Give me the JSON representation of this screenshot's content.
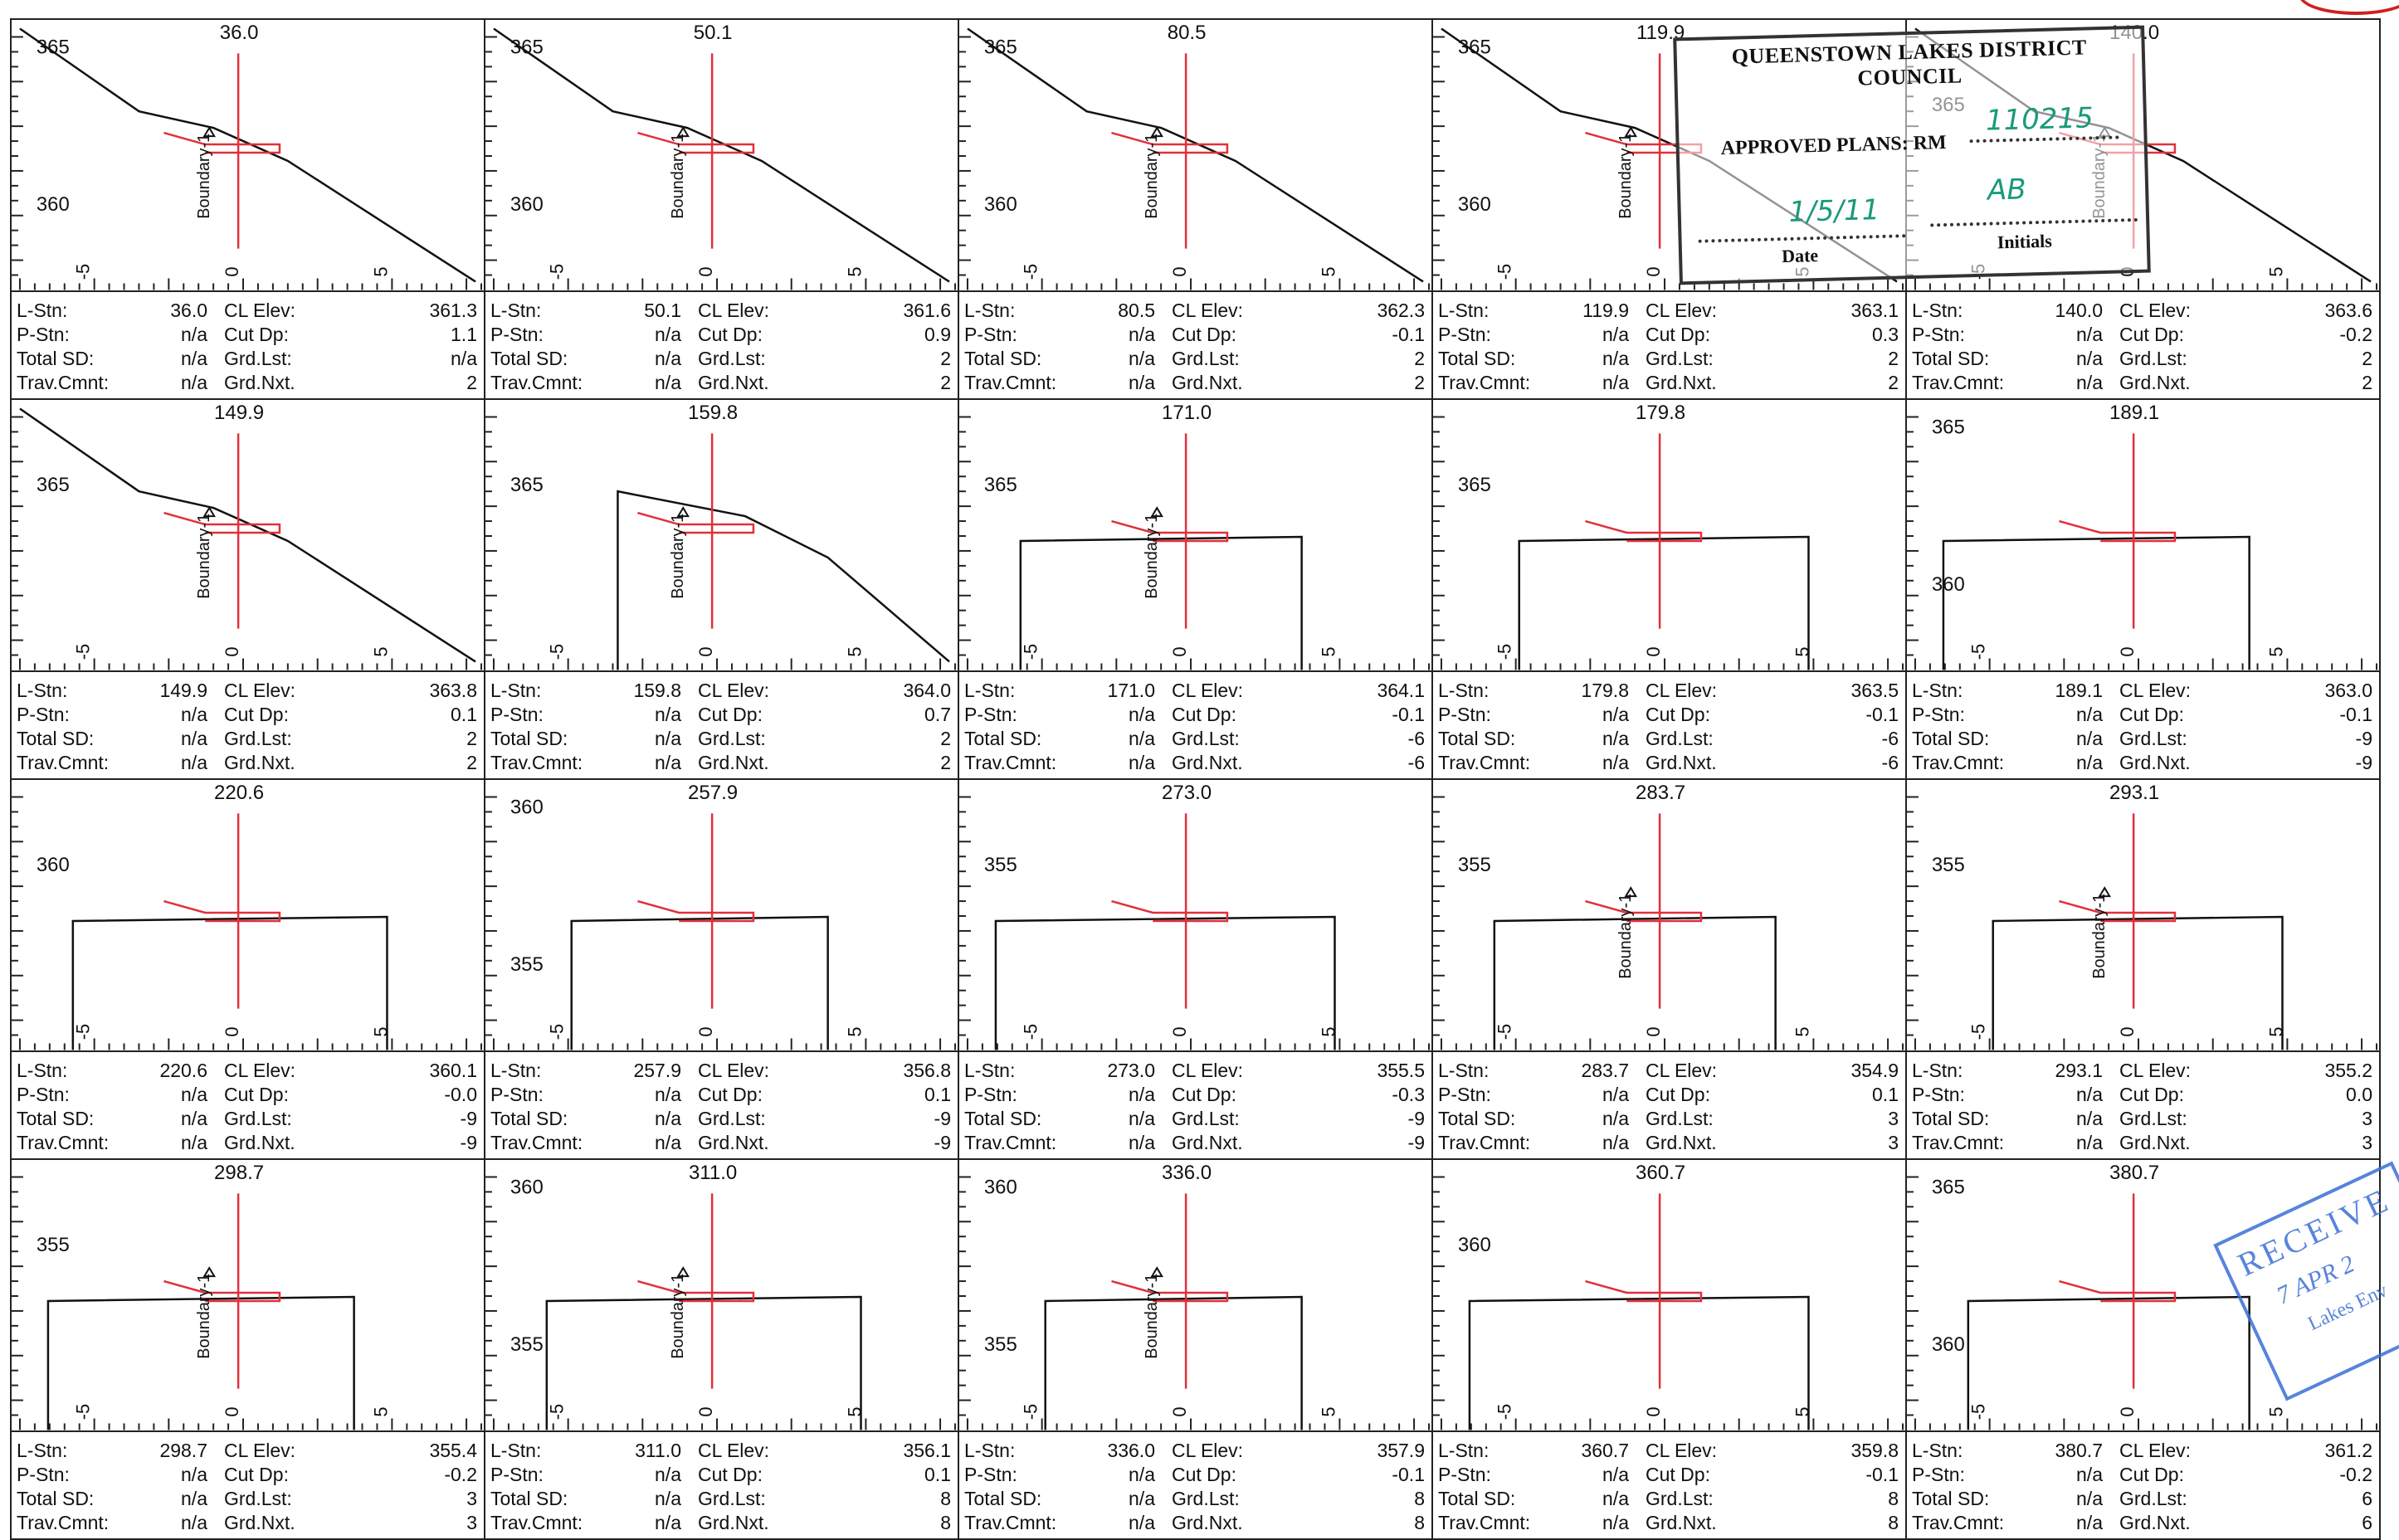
{
  "tick_labels": {
    "neg": "-5",
    "zero": "0",
    "pos": "5"
  },
  "field_labels": {
    "l_stn": "L-Stn:",
    "p_stn": "P-Stn:",
    "total_sd": "Total SD:",
    "trav_cmnt": "Trav.Cmnt:",
    "cl_elev": "CL Elev:",
    "cut_dp": "Cut Dp:",
    "grd_lst": "Grd.Lst:",
    "grd_nxt": "Grd.Nxt."
  },
  "boundary_label": "Boundary-1",
  "colors": {
    "ground": "#111111",
    "design": "#e0303a",
    "centerline": "#e0303a",
    "axis": "#222222"
  },
  "sections": [
    {
      "station": "36.0",
      "l_stn": "36.0",
      "p_stn": "n/a",
      "total_sd": "n/a",
      "trav_cmnt": "n/a",
      "cl_elev": "361.3",
      "cut_dp": "1.1",
      "grd_lst": "n/a",
      "grd_nxt": "2",
      "elev_labels": [
        "365",
        "360"
      ],
      "boundary": true
    },
    {
      "station": "50.1",
      "l_stn": "50.1",
      "p_stn": "n/a",
      "total_sd": "n/a",
      "trav_cmnt": "n/a",
      "cl_elev": "361.6",
      "cut_dp": "0.9",
      "grd_lst": "2",
      "grd_nxt": "2",
      "elev_labels": [
        "365",
        "360"
      ],
      "boundary": true
    },
    {
      "station": "80.5",
      "l_stn": "80.5",
      "p_stn": "n/a",
      "total_sd": "n/a",
      "trav_cmnt": "n/a",
      "cl_elev": "362.3",
      "cut_dp": "-0.1",
      "grd_lst": "2",
      "grd_nxt": "2",
      "elev_labels": [
        "365",
        "360"
      ],
      "boundary": true
    },
    {
      "station": "119.9",
      "l_stn": "119.9",
      "p_stn": "n/a",
      "total_sd": "n/a",
      "trav_cmnt": "n/a",
      "cl_elev": "363.1",
      "cut_dp": "0.3",
      "grd_lst": "2",
      "grd_nxt": "2",
      "elev_labels": [
        "365",
        "360"
      ],
      "boundary": true
    },
    {
      "station": "140.0",
      "l_stn": "140.0",
      "p_stn": "n/a",
      "total_sd": "n/a",
      "trav_cmnt": "n/a",
      "cl_elev": "363.6",
      "cut_dp": "-0.2",
      "grd_lst": "2",
      "grd_nxt": "2",
      "elev_labels": [
        "365"
      ],
      "boundary": true
    },
    {
      "station": "149.9",
      "l_stn": "149.9",
      "p_stn": "n/a",
      "total_sd": "n/a",
      "trav_cmnt": "n/a",
      "cl_elev": "363.8",
      "cut_dp": "0.1",
      "grd_lst": "2",
      "grd_nxt": "2",
      "elev_labels": [
        "365"
      ],
      "boundary": true
    },
    {
      "station": "159.8",
      "l_stn": "159.8",
      "p_stn": "n/a",
      "total_sd": "n/a",
      "trav_cmnt": "n/a",
      "cl_elev": "364.0",
      "cut_dp": "0.7",
      "grd_lst": "2",
      "grd_nxt": "2",
      "elev_labels": [
        "365"
      ],
      "boundary": true
    },
    {
      "station": "171.0",
      "l_stn": "171.0",
      "p_stn": "n/a",
      "total_sd": "n/a",
      "trav_cmnt": "n/a",
      "cl_elev": "364.1",
      "cut_dp": "-0.1",
      "grd_lst": "-6",
      "grd_nxt": "-6",
      "elev_labels": [
        "365"
      ],
      "boundary": true
    },
    {
      "station": "179.8",
      "l_stn": "179.8",
      "p_stn": "n/a",
      "total_sd": "n/a",
      "trav_cmnt": "n/a",
      "cl_elev": "363.5",
      "cut_dp": "-0.1",
      "grd_lst": "-6",
      "grd_nxt": "-6",
      "elev_labels": [
        "365"
      ],
      "boundary": false
    },
    {
      "station": "189.1",
      "l_stn": "189.1",
      "p_stn": "n/a",
      "total_sd": "n/a",
      "trav_cmnt": "n/a",
      "cl_elev": "363.0",
      "cut_dp": "-0.1",
      "grd_lst": "-9",
      "grd_nxt": "-9",
      "elev_labels": [
        "365",
        "360"
      ],
      "boundary": false
    },
    {
      "station": "220.6",
      "l_stn": "220.6",
      "p_stn": "n/a",
      "total_sd": "n/a",
      "trav_cmnt": "n/a",
      "cl_elev": "360.1",
      "cut_dp": "-0.0",
      "grd_lst": "-9",
      "grd_nxt": "-9",
      "elev_labels": [
        "360"
      ],
      "boundary": false
    },
    {
      "station": "257.9",
      "l_stn": "257.9",
      "p_stn": "n/a",
      "total_sd": "n/a",
      "trav_cmnt": "n/a",
      "cl_elev": "356.8",
      "cut_dp": "0.1",
      "grd_lst": "-9",
      "grd_nxt": "-9",
      "elev_labels": [
        "360",
        "355"
      ],
      "boundary": false
    },
    {
      "station": "273.0",
      "l_stn": "273.0",
      "p_stn": "n/a",
      "total_sd": "n/a",
      "trav_cmnt": "n/a",
      "cl_elev": "355.5",
      "cut_dp": "-0.3",
      "grd_lst": "-9",
      "grd_nxt": "-9",
      "elev_labels": [
        "355"
      ],
      "boundary": false
    },
    {
      "station": "283.7",
      "l_stn": "283.7",
      "p_stn": "n/a",
      "total_sd": "n/a",
      "trav_cmnt": "n/a",
      "cl_elev": "354.9",
      "cut_dp": "0.1",
      "grd_lst": "3",
      "grd_nxt": "3",
      "elev_labels": [
        "355"
      ],
      "boundary": true
    },
    {
      "station": "293.1",
      "l_stn": "293.1",
      "p_stn": "n/a",
      "total_sd": "n/a",
      "trav_cmnt": "n/a",
      "cl_elev": "355.2",
      "cut_dp": "0.0",
      "grd_lst": "3",
      "grd_nxt": "3",
      "elev_labels": [
        "355"
      ],
      "boundary": true
    },
    {
      "station": "298.7",
      "l_stn": "298.7",
      "p_stn": "n/a",
      "total_sd": "n/a",
      "trav_cmnt": "n/a",
      "cl_elev": "355.4",
      "cut_dp": "-0.2",
      "grd_lst": "3",
      "grd_nxt": "3",
      "elev_labels": [
        "355"
      ],
      "boundary": true
    },
    {
      "station": "311.0",
      "l_stn": "311.0",
      "p_stn": "n/a",
      "total_sd": "n/a",
      "trav_cmnt": "n/a",
      "cl_elev": "356.1",
      "cut_dp": "0.1",
      "grd_lst": "8",
      "grd_nxt": "8",
      "elev_labels": [
        "360",
        "355"
      ],
      "boundary": true
    },
    {
      "station": "336.0",
      "l_stn": "336.0",
      "p_stn": "n/a",
      "total_sd": "n/a",
      "trav_cmnt": "n/a",
      "cl_elev": "357.9",
      "cut_dp": "-0.1",
      "grd_lst": "8",
      "grd_nxt": "8",
      "elev_labels": [
        "360",
        "355"
      ],
      "boundary": true
    },
    {
      "station": "360.7",
      "l_stn": "360.7",
      "p_stn": "n/a",
      "total_sd": "n/a",
      "trav_cmnt": "n/a",
      "cl_elev": "359.8",
      "cut_dp": "-0.1",
      "grd_lst": "8",
      "grd_nxt": "8",
      "elev_labels": [
        "360"
      ],
      "boundary": false
    },
    {
      "station": "380.7",
      "l_stn": "380.7",
      "p_stn": "n/a",
      "total_sd": "n/a",
      "trav_cmnt": "n/a",
      "cl_elev": "361.2",
      "cut_dp": "-0.2",
      "grd_lst": "6",
      "grd_nxt": "6",
      "elev_labels": [
        "365",
        "360"
      ],
      "boundary": false
    }
  ],
  "stamp": {
    "council": "QUEENSTOWN LAKES DISTRICT COUNCIL",
    "approved": "APPROVED PLANS:  RM",
    "rm_number": "110215",
    "date_written": "1/5/11",
    "initials_written": "AB",
    "date_label": "Date",
    "initials_label": "Initials"
  },
  "received_stamp": {
    "line1": "RECEIVE",
    "line2": "7 APR 2",
    "line3": "Lakes Env"
  }
}
